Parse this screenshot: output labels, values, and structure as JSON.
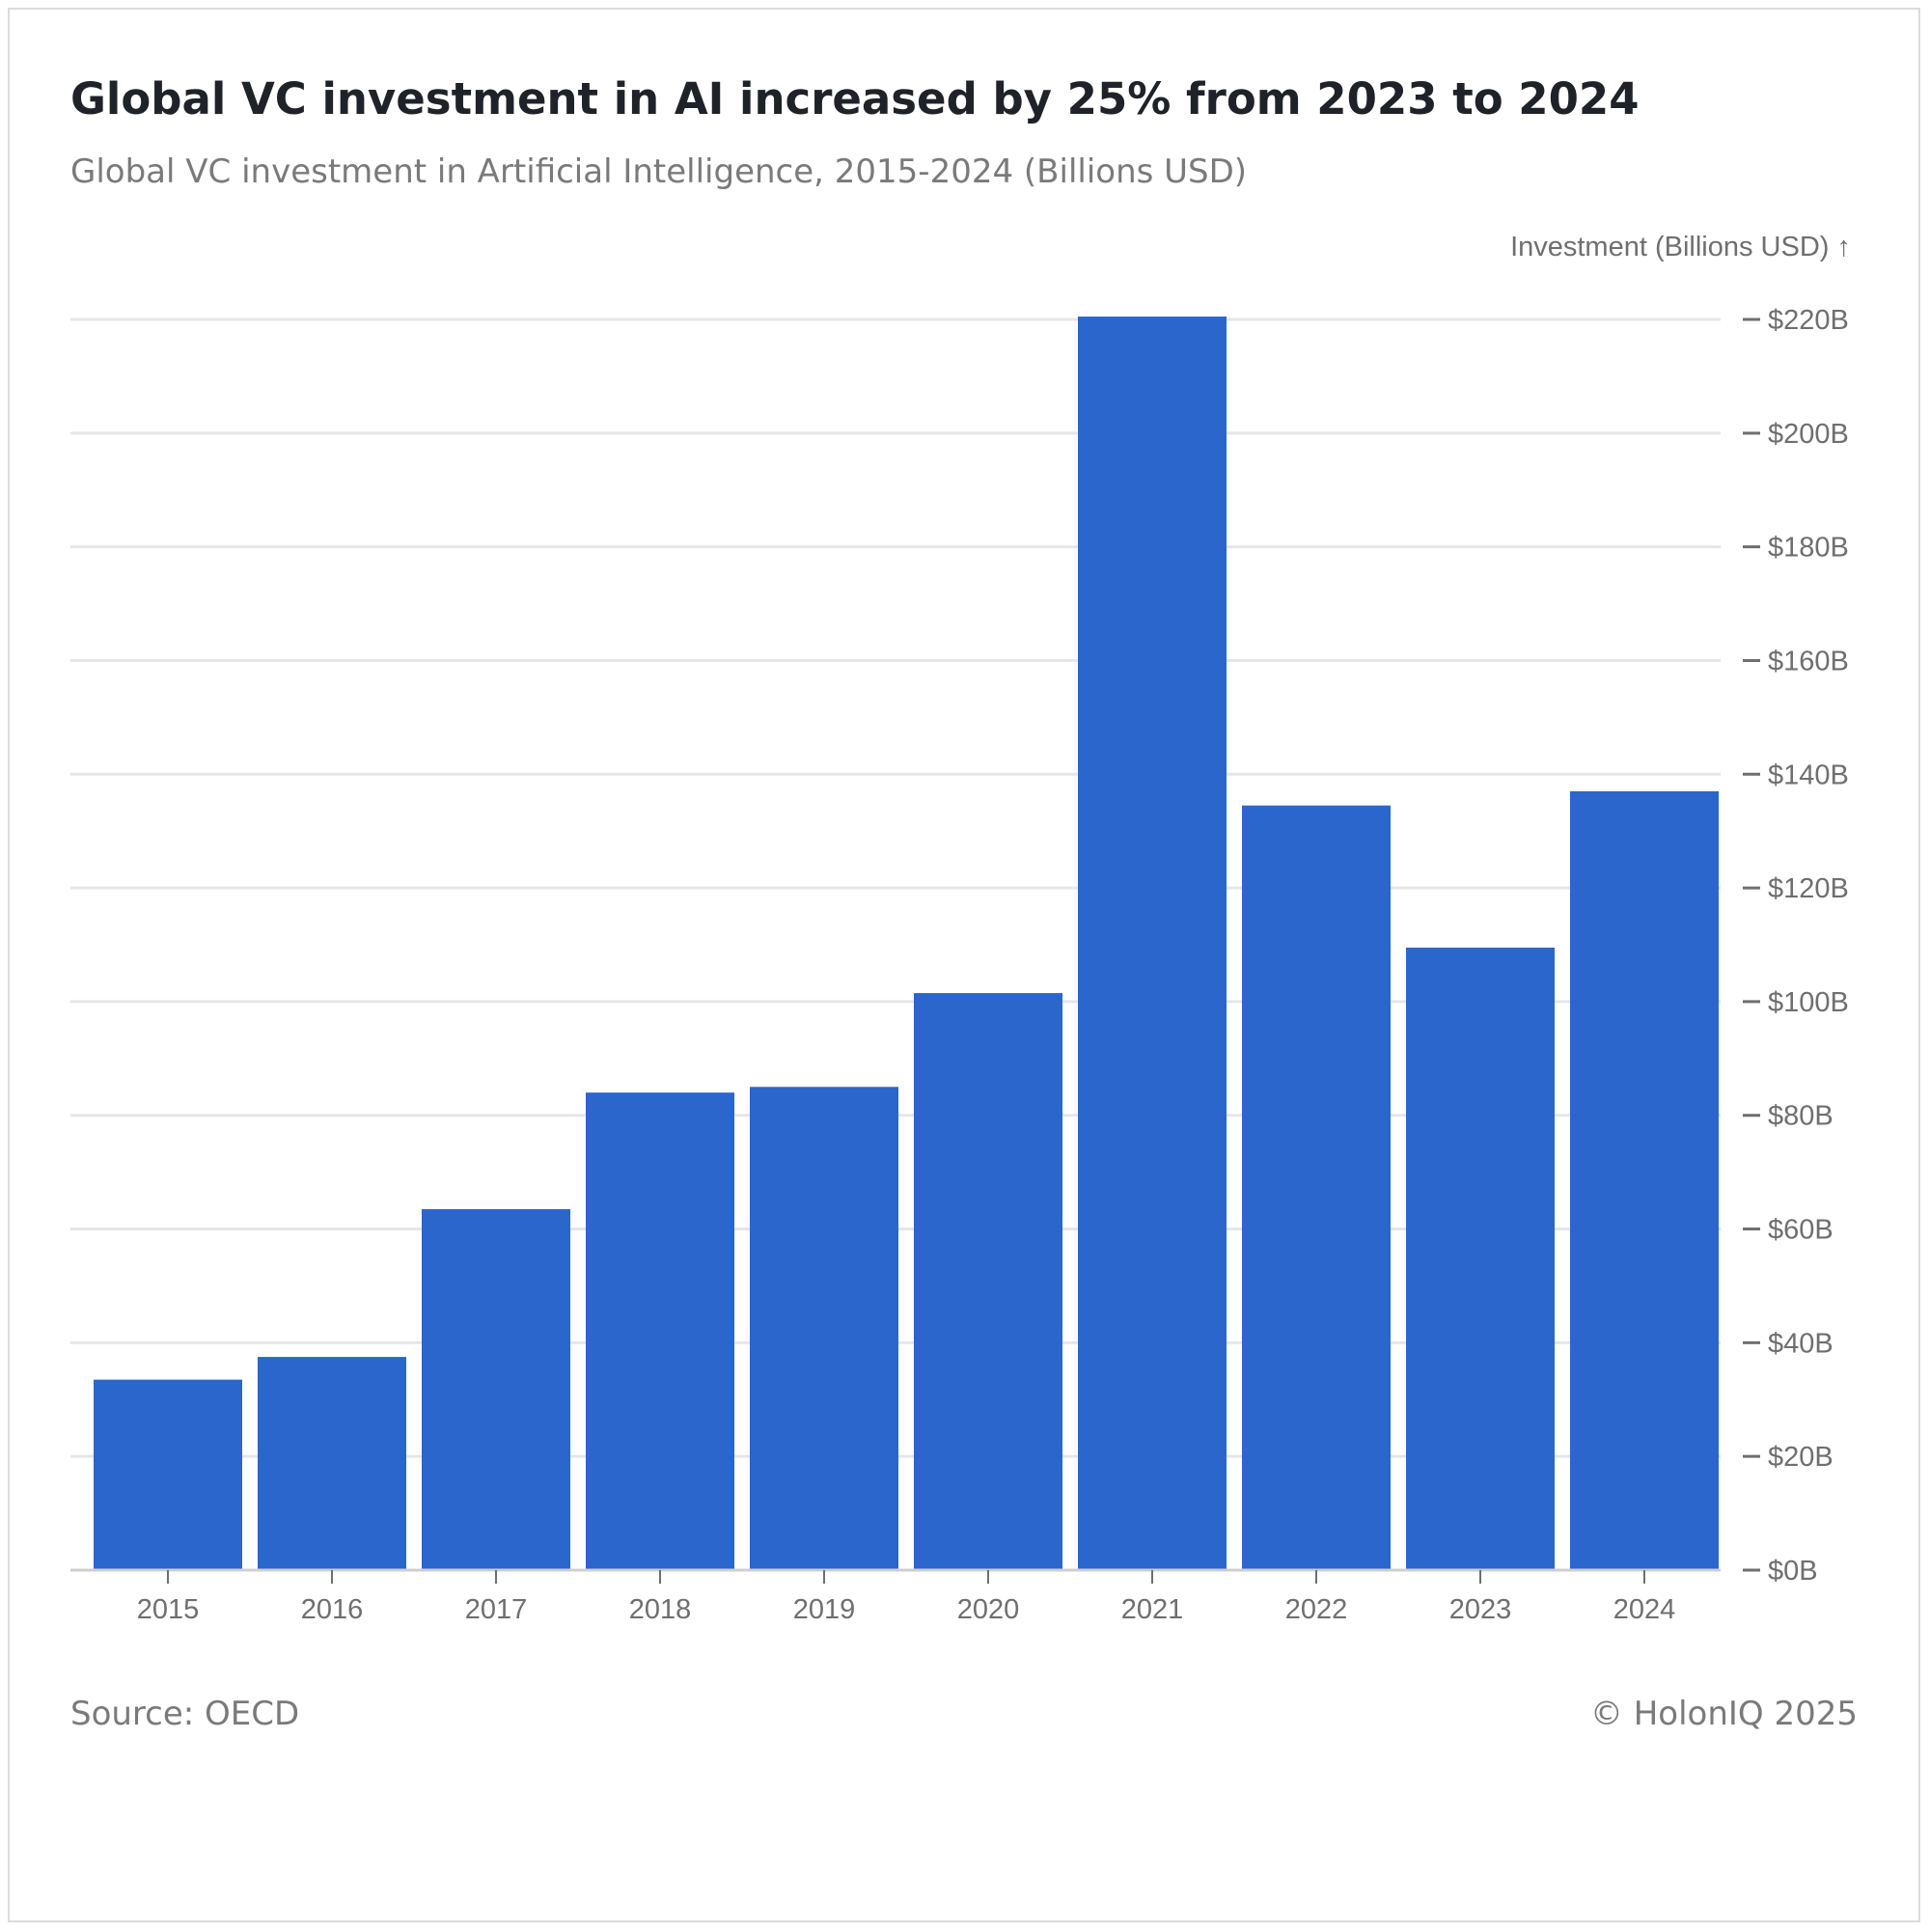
{
  "header": {
    "title": "Global VC investment in AI increased by 25% from 2023 to 2024",
    "subtitle": "Global VC investment in Artificial Intelligence, 2015-2024 (Billions USD)"
  },
  "footer": {
    "source": "Source: OECD",
    "copyright": "© HolonIQ 2025"
  },
  "colors": {
    "bar": "#2a66cc",
    "grid": "#e6e6e6",
    "axis": "#6f6f6f"
  },
  "chart_data": {
    "type": "bar",
    "title": "Global VC investment in AI increased by 25% from 2023 to 2024",
    "subtitle": "Global VC investment in Artificial Intelligence, 2015-2024 (Billions USD)",
    "xlabel": "",
    "ylabel": "Investment (Billions USD) ↑",
    "categories": [
      "2015",
      "2016",
      "2017",
      "2018",
      "2019",
      "2020",
      "2021",
      "2022",
      "2023",
      "2024"
    ],
    "values": [
      33.5,
      37.5,
      63.5,
      84,
      85,
      101.5,
      220.5,
      134.5,
      109.5,
      137
    ],
    "ylim": [
      0,
      220
    ],
    "yticks": [
      0,
      20,
      40,
      60,
      80,
      100,
      120,
      140,
      160,
      180,
      200,
      220
    ],
    "ytick_labels": [
      "$0B",
      "$20B",
      "$40B",
      "$60B",
      "$80B",
      "$100B",
      "$120B",
      "$140B",
      "$160B",
      "$180B",
      "$200B",
      "$220B"
    ],
    "y_axis_side": "right",
    "grid": true
  }
}
